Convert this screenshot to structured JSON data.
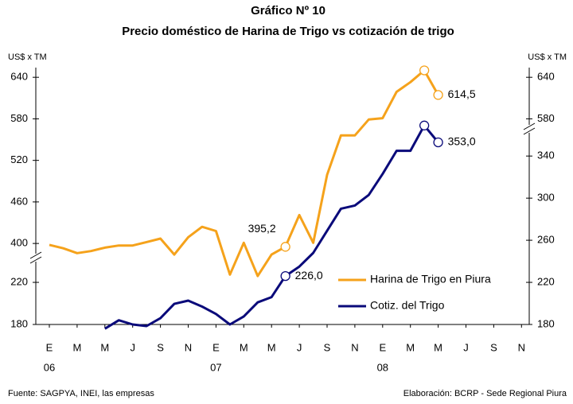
{
  "chart_data": {
    "type": "line",
    "title": "Gráfico Nº 10",
    "subtitle": "Precio doméstico de Harina de Trigo vs cotización de trigo",
    "ylabel": "US$ x TM",
    "y2label": "US$ x TM",
    "source": "Fuente: SAGPYA, INEI, las empresas",
    "credit": "Elaboración: BCRP - Sede Regional Piura",
    "categories": [
      "E",
      null,
      "M",
      null,
      "M",
      null,
      "J",
      null,
      "S",
      null,
      "N",
      null,
      "E",
      null,
      "M",
      null,
      "M",
      null,
      "J",
      null,
      "S",
      null,
      "N",
      null,
      "E",
      null,
      "M",
      null,
      "M",
      null,
      "J",
      null,
      "S",
      null,
      "N",
      null
    ],
    "years": [
      "06",
      "07",
      "08"
    ],
    "ylim": [
      283,
      654
    ],
    "yticks": [
      400,
      460,
      520,
      580,
      640
    ],
    "yticks_right": [
      580,
      640
    ],
    "y2lim": [
      180,
      424
    ],
    "y2ticks": [
      180,
      220,
      260,
      300,
      340
    ],
    "y2ticks_left": [
      180,
      220
    ],
    "legend": "lower right",
    "series": [
      {
        "name": "Harina de Trigo en Piura",
        "color": "#f5a21b",
        "values": [
          398,
          393,
          386,
          389,
          394,
          397,
          397,
          402,
          407,
          384,
          409,
          424,
          418,
          355,
          401,
          353,
          384,
          395.2,
          441,
          401,
          499,
          556,
          556,
          579,
          581,
          619,
          633,
          650,
          614.5,
          null,
          null,
          null,
          null,
          null,
          null,
          null
        ],
        "markers": [
          17,
          27,
          28
        ],
        "value_labels": [
          null,
          null,
          null,
          null,
          null,
          null,
          null,
          null,
          null,
          null,
          null,
          null,
          null,
          null,
          null,
          null,
          null,
          "395,2",
          null,
          null,
          null,
          null,
          null,
          null,
          null,
          null,
          null,
          null,
          "614,5",
          null,
          null,
          null,
          null,
          null,
          null,
          null
        ]
      },
      {
        "name": "Cotiz. del Trigo",
        "color": "#0a0a7a",
        "axis": "y2",
        "values": [
          null,
          null,
          null,
          null,
          176,
          184,
          180,
          178.5,
          186,
          199.6,
          202.7,
          197,
          190,
          180,
          187.6,
          201,
          206,
          226.0,
          235,
          248,
          269,
          290,
          293,
          303,
          323,
          345,
          345,
          369,
          353.0,
          null,
          null,
          null,
          null,
          null,
          null,
          null
        ],
        "markers": [
          17,
          27,
          28
        ],
        "value_labels": [
          null,
          null,
          null,
          null,
          null,
          null,
          null,
          null,
          null,
          null,
          null,
          null,
          null,
          null,
          null,
          null,
          null,
          "226,0",
          null,
          null,
          null,
          null,
          null,
          null,
          null,
          null,
          null,
          null,
          "353,0",
          null,
          null,
          null,
          null,
          null,
          null,
          null
        ]
      }
    ]
  }
}
